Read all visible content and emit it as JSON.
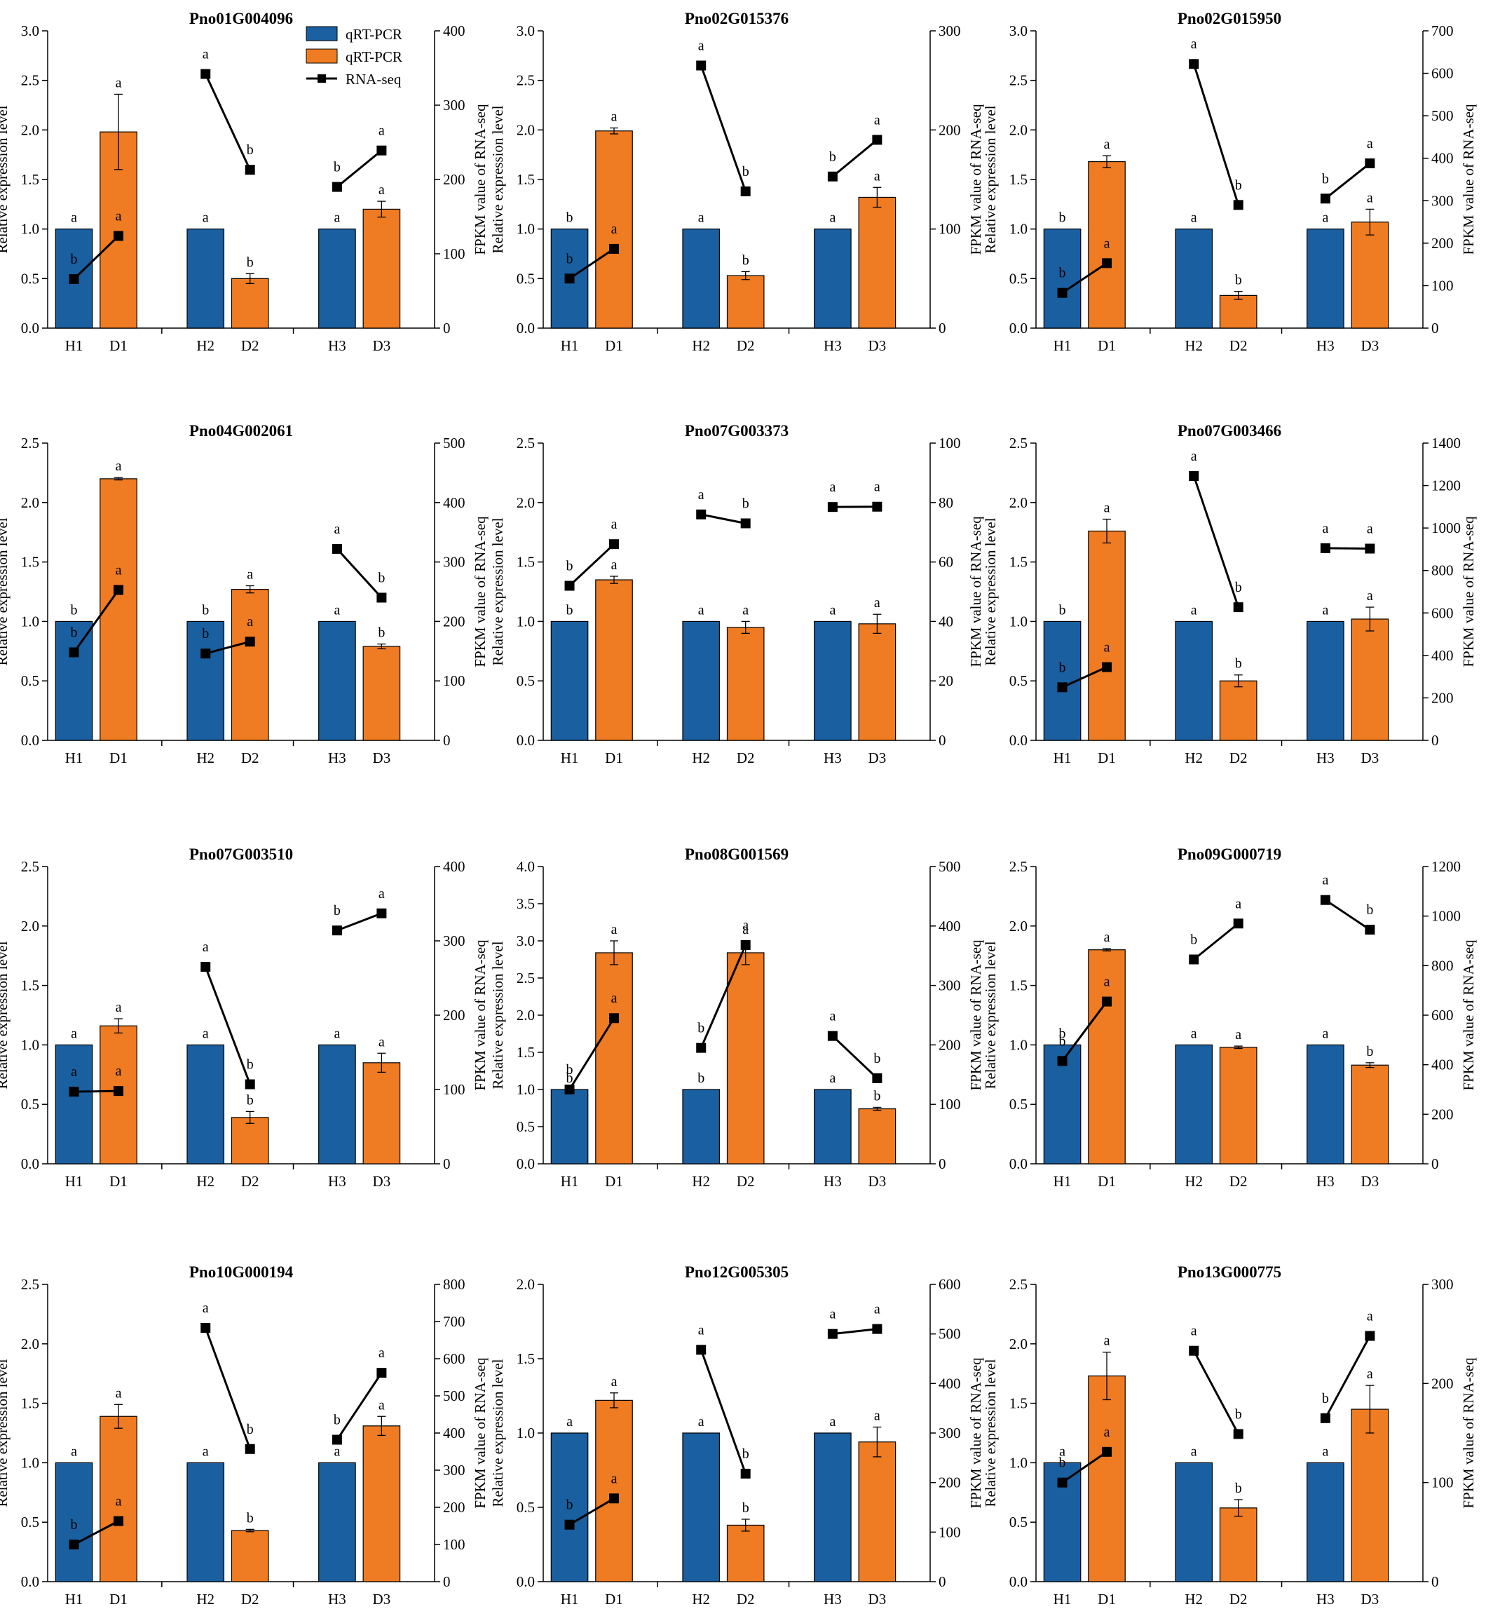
{
  "legend": {
    "entries": [
      {
        "label": "qRT-PCR",
        "kind": "bar",
        "color": "#1a5fa0"
      },
      {
        "label": "qRT-PCR",
        "kind": "bar",
        "color": "#ef7b22"
      },
      {
        "label": "RNA-seq",
        "kind": "line-square",
        "color": "#000000"
      }
    ]
  },
  "colors": {
    "healthy": "#1a5fa0",
    "diseased": "#ef7b22",
    "line": "#000000"
  },
  "chart_data": [
    {
      "type": "bar",
      "title": "Pno01G004096",
      "categories": [
        "H1",
        "D1",
        "H2",
        "D2",
        "H3",
        "D3"
      ],
      "ylabel": "Relative expression level",
      "y2label": "FPKM value of RNA-seq",
      "ylim": [
        0,
        3.0
      ],
      "yticks": [
        "0.0",
        "0.5",
        "1.0",
        "1.5",
        "2.0",
        "2.5",
        "3.0"
      ],
      "y2lim": [
        0,
        400
      ],
      "y2ticks": [
        "0",
        "100",
        "200",
        "300",
        "400"
      ],
      "series": [
        {
          "name": "qRT-PCR",
          "values": [
            1.0,
            1.98,
            1.0,
            0.5,
            1.0,
            1.2
          ],
          "errors": [
            0,
            0.38,
            0,
            0.05,
            0,
            0.08
          ]
        },
        {
          "name": "RNA-seq",
          "values": [
            66,
            124,
            342,
            213,
            190,
            239
          ]
        }
      ],
      "bar_letters": [
        "a",
        "a",
        "a",
        "b",
        "a",
        "a"
      ],
      "line_letters": [
        "b",
        "a",
        "a",
        "b",
        "b",
        "a"
      ]
    },
    {
      "type": "bar",
      "title": "Pno02G015376",
      "categories": [
        "H1",
        "D1",
        "H2",
        "D2",
        "H3",
        "D3"
      ],
      "ylabel": "Relative expression level",
      "y2label": "FPKM value of RNA-seq",
      "ylim": [
        0,
        3.0
      ],
      "yticks": [
        "0.0",
        "0.5",
        "1.0",
        "1.5",
        "2.0",
        "2.5",
        "3.0"
      ],
      "y2lim": [
        0,
        300
      ],
      "y2ticks": [
        "0",
        "100",
        "200",
        "300"
      ],
      "series": [
        {
          "name": "qRT-PCR",
          "values": [
            1.0,
            1.99,
            1.0,
            0.53,
            1.0,
            1.32
          ],
          "errors": [
            0,
            0.03,
            0,
            0.04,
            0,
            0.1
          ]
        },
        {
          "name": "RNA-seq",
          "values": [
            50,
            80,
            265,
            138,
            153,
            190
          ]
        }
      ],
      "bar_letters": [
        "b",
        "a",
        "a",
        "b",
        "a",
        "a"
      ],
      "line_letters": [
        "b",
        "a",
        "a",
        "b",
        "b",
        "a"
      ]
    },
    {
      "type": "bar",
      "title": "Pno02G015950",
      "categories": [
        "H1",
        "D1",
        "H2",
        "D2",
        "H3",
        "D3"
      ],
      "ylabel": "Relative expression level",
      "y2label": "FPKM value of RNA-seq",
      "ylim": [
        0,
        3.0
      ],
      "yticks": [
        "0.0",
        "0.5",
        "1.0",
        "1.5",
        "2.0",
        "2.5",
        "3.0"
      ],
      "y2lim": [
        0,
        700
      ],
      "y2ticks": [
        "0",
        "100",
        "200",
        "300",
        "400",
        "500",
        "600",
        "700"
      ],
      "series": [
        {
          "name": "qRT-PCR",
          "values": [
            1.0,
            1.68,
            1.0,
            0.33,
            1.0,
            1.07
          ],
          "errors": [
            0,
            0.06,
            0,
            0.04,
            0,
            0.13
          ]
        },
        {
          "name": "RNA-seq",
          "values": [
            83,
            153,
            622,
            290,
            305,
            388
          ]
        }
      ],
      "bar_letters": [
        "b",
        "a",
        "a",
        "b",
        "a",
        "a"
      ],
      "line_letters": [
        "b",
        "a",
        "a",
        "b",
        "b",
        "a"
      ]
    },
    {
      "type": "bar",
      "title": "Pno04G002061",
      "categories": [
        "H1",
        "D1",
        "H2",
        "D2",
        "H3",
        "D3"
      ],
      "ylabel": "Relative expression level",
      "y2label": "FPKM value of RNA-seq",
      "ylim": [
        0,
        2.5
      ],
      "yticks": [
        "0.0",
        "0.5",
        "1.0",
        "1.5",
        "2.0",
        "2.5"
      ],
      "y2lim": [
        0,
        500
      ],
      "y2ticks": [
        "0",
        "100",
        "200",
        "300",
        "400",
        "500"
      ],
      "series": [
        {
          "name": "qRT-PCR",
          "values": [
            1.0,
            2.2,
            1.0,
            1.27,
            1.0,
            0.79
          ],
          "errors": [
            0,
            0.01,
            0,
            0.03,
            0,
            0.02
          ]
        },
        {
          "name": "RNA-seq",
          "values": [
            148,
            253,
            146,
            166,
            322,
            240
          ]
        }
      ],
      "bar_letters": [
        "b",
        "a",
        "b",
        "a",
        "a",
        "b"
      ],
      "line_letters": [
        "b",
        "a",
        "b",
        "a",
        "a",
        "b"
      ]
    },
    {
      "type": "bar",
      "title": "Pno07G003373",
      "categories": [
        "H1",
        "D1",
        "H2",
        "D2",
        "H3",
        "D3"
      ],
      "ylabel": "Relative expression level",
      "y2label": "FPKM value of RNA-seq",
      "ylim": [
        0,
        2.5
      ],
      "yticks": [
        "0.0",
        "0.5",
        "1.0",
        "1.5",
        "2.0",
        "2.5"
      ],
      "y2lim": [
        0,
        100
      ],
      "y2ticks": [
        "0",
        "20",
        "40",
        "60",
        "80",
        "100"
      ],
      "series": [
        {
          "name": "qRT-PCR",
          "values": [
            1.0,
            1.35,
            1.0,
            0.95,
            1.0,
            0.98
          ],
          "errors": [
            0,
            0.03,
            0,
            0.05,
            0,
            0.08
          ]
        },
        {
          "name": "RNA-seq",
          "values": [
            52,
            66,
            76,
            73,
            78.5,
            78.6
          ]
        }
      ],
      "bar_letters": [
        "b",
        "a",
        "a",
        "a",
        "a",
        "a"
      ],
      "line_letters": [
        "b",
        "a",
        "a",
        "b",
        "a",
        "a"
      ]
    },
    {
      "type": "bar",
      "title": "Pno07G003466",
      "categories": [
        "H1",
        "D1",
        "H2",
        "D2",
        "H3",
        "D3"
      ],
      "ylabel": "Relative expression level",
      "y2label": "FPKM value of RNA-seq",
      "ylim": [
        0,
        2.5
      ],
      "yticks": [
        "0.0",
        "0.5",
        "1.0",
        "1.5",
        "2.0",
        "2.5"
      ],
      "y2lim": [
        0,
        1400
      ],
      "y2ticks": [
        "0",
        "200",
        "400",
        "600",
        "800",
        "1000",
        "1200",
        "1400"
      ],
      "series": [
        {
          "name": "qRT-PCR",
          "values": [
            1.0,
            1.76,
            1.0,
            0.5,
            1.0,
            1.02
          ],
          "errors": [
            0,
            0.1,
            0,
            0.05,
            0,
            0.1
          ]
        },
        {
          "name": "RNA-seq",
          "values": [
            250,
            345,
            1245,
            627,
            905,
            903
          ]
        }
      ],
      "bar_letters": [
        "b",
        "a",
        "a",
        "b",
        "a",
        "a"
      ],
      "line_letters": [
        "b",
        "a",
        "a",
        "b",
        "a",
        "a"
      ]
    },
    {
      "type": "bar",
      "title": "Pno07G003510",
      "categories": [
        "H1",
        "D1",
        "H2",
        "D2",
        "H3",
        "D3"
      ],
      "ylabel": "Relative expression level",
      "y2label": "FPKM value of RNA-seq",
      "ylim": [
        0,
        2.5
      ],
      "yticks": [
        "0.0",
        "0.5",
        "1.0",
        "1.5",
        "2.0",
        "2.5"
      ],
      "y2lim": [
        0,
        400
      ],
      "y2ticks": [
        "0",
        "100",
        "200",
        "300",
        "400"
      ],
      "series": [
        {
          "name": "qRT-PCR",
          "values": [
            1.0,
            1.16,
            1.0,
            0.39,
            1.0,
            0.85
          ],
          "errors": [
            0,
            0.06,
            0,
            0.05,
            0,
            0.08
          ]
        },
        {
          "name": "RNA-seq",
          "values": [
            97,
            98,
            265,
            107,
            314,
            337
          ]
        }
      ],
      "bar_letters": [
        "a",
        "a",
        "a",
        "b",
        "a",
        "a"
      ],
      "line_letters": [
        "a",
        "a",
        "a",
        "b",
        "b",
        "a"
      ]
    },
    {
      "type": "bar",
      "title": "Pno08G001569",
      "categories": [
        "H1",
        "D1",
        "H2",
        "D2",
        "H3",
        "D3"
      ],
      "ylabel": "Relative expression level",
      "y2label": "FPKM value of RNA-seq",
      "ylim": [
        0,
        4.0
      ],
      "yticks": [
        "0.0",
        "0.5",
        "1.0",
        "1.5",
        "2.0",
        "2.5",
        "3.0",
        "3.5",
        "4.0"
      ],
      "y2lim": [
        0,
        500
      ],
      "y2ticks": [
        "0",
        "100",
        "200",
        "300",
        "400",
        "500"
      ],
      "series": [
        {
          "name": "qRT-PCR",
          "values": [
            1.0,
            2.84,
            1.0,
            2.84,
            1.0,
            0.74
          ],
          "errors": [
            0,
            0.16,
            0,
            0.16,
            0,
            0.02
          ]
        },
        {
          "name": "RNA-seq",
          "values": [
            125,
            245,
            195,
            368,
            215,
            144
          ]
        }
      ],
      "bar_letters": [
        "b",
        "a",
        "b",
        "a",
        "a",
        "b"
      ],
      "line_letters": [
        "b",
        "a",
        "b",
        "a",
        "a",
        "b"
      ]
    },
    {
      "type": "bar",
      "title": "Pno09G000719",
      "categories": [
        "H1",
        "D1",
        "H2",
        "D2",
        "H3",
        "D3"
      ],
      "ylabel": "Relative expression level",
      "y2label": "FPKM value of RNA-seq",
      "ylim": [
        0,
        2.5
      ],
      "yticks": [
        "0.0",
        "0.5",
        "1.0",
        "1.5",
        "2.0",
        "2.5"
      ],
      "y2lim": [
        0,
        1200
      ],
      "y2ticks": [
        "0",
        "200",
        "400",
        "600",
        "800",
        "1000",
        "1200"
      ],
      "series": [
        {
          "name": "qRT-PCR",
          "values": [
            1.0,
            1.8,
            1.0,
            0.98,
            1.0,
            0.83
          ],
          "errors": [
            0,
            0.01,
            0,
            0.01,
            0,
            0.02
          ]
        },
        {
          "name": "RNA-seq",
          "values": [
            415,
            655,
            825,
            970,
            1065,
            945
          ]
        }
      ],
      "bar_letters": [
        "b",
        "a",
        "a",
        "a",
        "a",
        "b"
      ],
      "line_letters": [
        "b",
        "a",
        "b",
        "a",
        "a",
        "b"
      ]
    },
    {
      "type": "bar",
      "title": "Pno10G000194",
      "categories": [
        "H1",
        "D1",
        "H2",
        "D2",
        "H3",
        "D3"
      ],
      "ylabel": "Relative expression level",
      "y2label": "FPKM value of RNA-seq",
      "ylim": [
        0,
        2.5
      ],
      "yticks": [
        "0.0",
        "0.5",
        "1.0",
        "1.5",
        "2.0",
        "2.5"
      ],
      "y2lim": [
        0,
        800
      ],
      "y2ticks": [
        "0",
        "100",
        "200",
        "300",
        "400",
        "500",
        "600",
        "700",
        "800"
      ],
      "series": [
        {
          "name": "qRT-PCR",
          "values": [
            1.0,
            1.39,
            1.0,
            0.43,
            1.0,
            1.31
          ],
          "errors": [
            0,
            0.1,
            0,
            0.01,
            0,
            0.08
          ]
        },
        {
          "name": "RNA-seq",
          "values": [
            100,
            163,
            683,
            357,
            382,
            562
          ]
        }
      ],
      "bar_letters": [
        "a",
        "a",
        "a",
        "b",
        "a",
        "a"
      ],
      "line_letters": [
        "b",
        "a",
        "a",
        "b",
        "b",
        "a"
      ]
    },
    {
      "type": "bar",
      "title": "Pno12G005305",
      "categories": [
        "H1",
        "D1",
        "H2",
        "D2",
        "H3",
        "D3"
      ],
      "ylabel": "Relative expression level",
      "y2label": "FPKM value of RNA-seq",
      "ylim": [
        0,
        2.0
      ],
      "yticks": [
        "0.0",
        "0.5",
        "1.0",
        "1.5",
        "2.0"
      ],
      "y2lim": [
        0,
        600
      ],
      "y2ticks": [
        "0",
        "100",
        "200",
        "300",
        "400",
        "500",
        "600"
      ],
      "series": [
        {
          "name": "qRT-PCR",
          "values": [
            1.0,
            1.22,
            1.0,
            0.38,
            1.0,
            0.94
          ],
          "errors": [
            0,
            0.05,
            0,
            0.04,
            0,
            0.1
          ]
        },
        {
          "name": "RNA-seq",
          "values": [
            115,
            168,
            468,
            218,
            500,
            510
          ]
        }
      ],
      "bar_letters": [
        "a",
        "a",
        "a",
        "b",
        "a",
        "a"
      ],
      "line_letters": [
        "b",
        "a",
        "a",
        "b",
        "a",
        "a"
      ]
    },
    {
      "type": "bar",
      "title": "Pno13G000775",
      "categories": [
        "H1",
        "D1",
        "H2",
        "D2",
        "H3",
        "D3"
      ],
      "ylabel": "Relative expression level",
      "y2label": "FPKM value of RNA-seq",
      "ylim": [
        0,
        2.5
      ],
      "yticks": [
        "0.0",
        "0.5",
        "1.0",
        "1.5",
        "2.0",
        "2.5"
      ],
      "y2lim": [
        0,
        300
      ],
      "y2ticks": [
        "0",
        "100",
        "200",
        "300"
      ],
      "series": [
        {
          "name": "qRT-PCR",
          "values": [
            1.0,
            1.73,
            1.0,
            0.62,
            1.0,
            1.45
          ],
          "errors": [
            0,
            0.2,
            0,
            0.07,
            0,
            0.2
          ]
        },
        {
          "name": "RNA-seq",
          "values": [
            100,
            131,
            233,
            149,
            165,
            248
          ]
        }
      ],
      "bar_letters": [
        "a",
        "a",
        "a",
        "b",
        "a",
        "a"
      ],
      "line_letters": [
        "b",
        "a",
        "a",
        "b",
        "b",
        "a"
      ]
    }
  ]
}
